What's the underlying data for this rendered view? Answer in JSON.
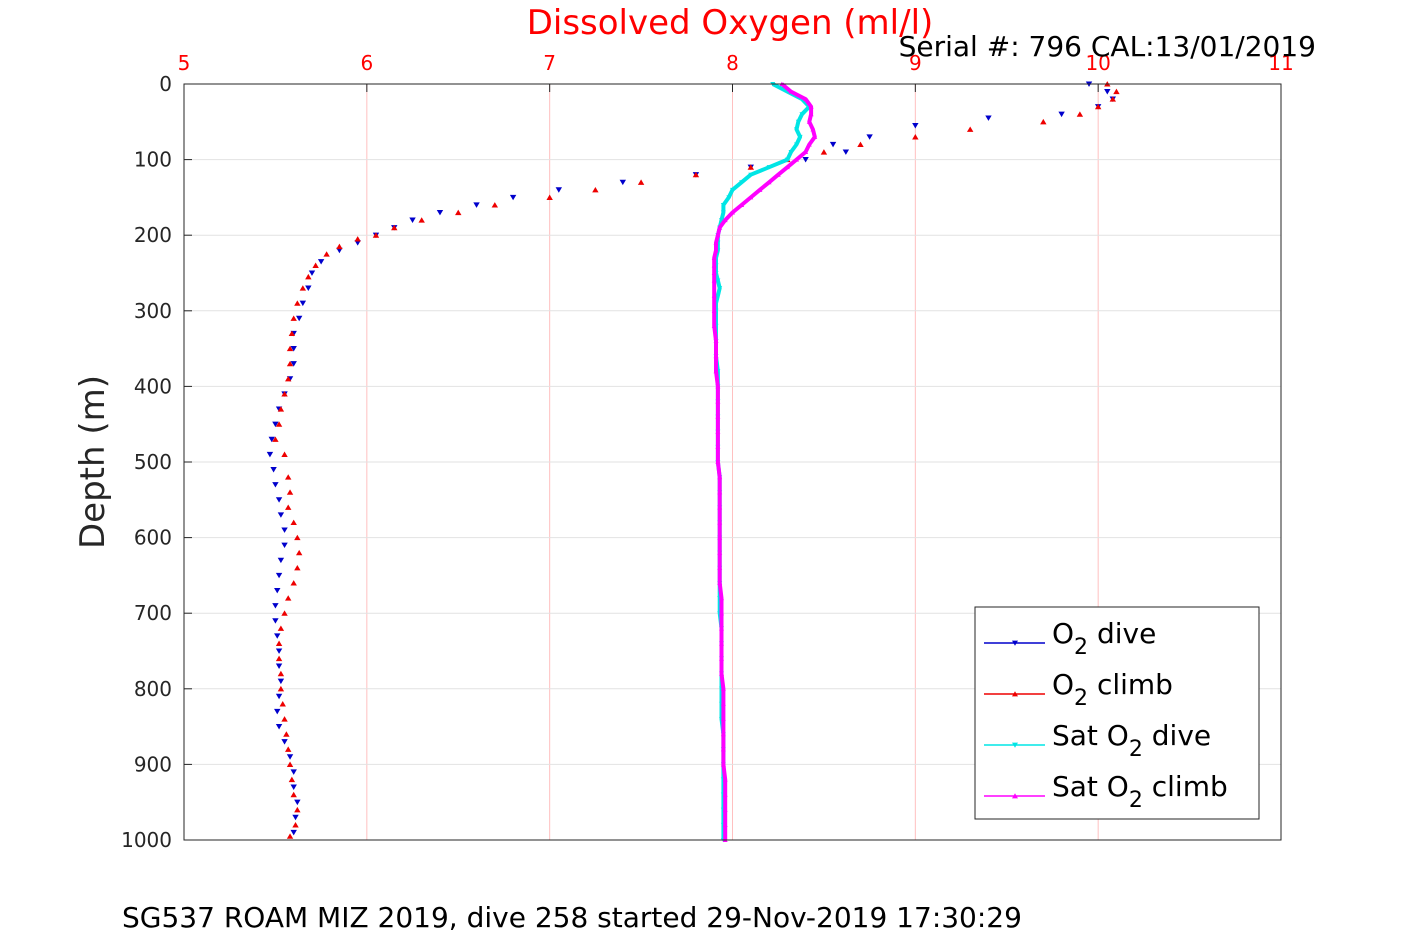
{
  "chart_data": {
    "type": "scatter",
    "title": "Dissolved Oxygen (ml/l)",
    "serial_text": "Serial #: 796  CAL:13/01/2019",
    "caption": "SG537 ROAM MIZ 2019, dive 258 started 29-Nov-2019 17:30:29",
    "xlabel": "Dissolved Oxygen (ml/l)",
    "ylabel": "Depth (m)",
    "xlim": [
      5,
      11
    ],
    "ylim": [
      0,
      1000
    ],
    "y_reversed": true,
    "x_axis_position": "top",
    "grid": true,
    "legend_position": "bottom-right",
    "x_ticks": [
      "5",
      "6",
      "7",
      "8",
      "9",
      "10",
      "11"
    ],
    "y_ticks": [
      "0",
      "100",
      "200",
      "300",
      "400",
      "500",
      "600",
      "700",
      "800",
      "900",
      "1000"
    ],
    "colors": {
      "title": "#ff0000",
      "x_tick_labels": "#ff0000",
      "grid": "#ffc0c0",
      "o2_dive": "#0000cc",
      "o2_climb": "#ee0000",
      "sat_o2_dive": "#00e5e5",
      "sat_o2_climb": "#ff00ff"
    },
    "legend": [
      {
        "pre": "O",
        "sub": "2",
        "post": " dive",
        "color": "#0000cc",
        "marker": "triangle-down"
      },
      {
        "pre": "O",
        "sub": "2",
        "post": " climb",
        "color": "#ee0000",
        "marker": "triangle-up"
      },
      {
        "pre": "Sat O",
        "sub": "2",
        "post": " dive",
        "color": "#00e5e5",
        "marker": "triangle-down"
      },
      {
        "pre": "Sat O",
        "sub": "2",
        "post": " climb",
        "color": "#ff00ff",
        "marker": "triangle-up"
      }
    ],
    "series": [
      {
        "key": "o2_dive",
        "color": "#0000cc",
        "marker": "triangle-down",
        "points": [
          [
            9.95,
            0
          ],
          [
            10.05,
            10
          ],
          [
            10.08,
            20
          ],
          [
            10.0,
            30
          ],
          [
            9.8,
            40
          ],
          [
            9.4,
            45
          ],
          [
            9.0,
            55
          ],
          [
            8.75,
            70
          ],
          [
            8.55,
            80
          ],
          [
            8.62,
            90
          ],
          [
            8.4,
            100
          ],
          [
            8.1,
            110
          ],
          [
            7.8,
            120
          ],
          [
            7.4,
            130
          ],
          [
            7.05,
            140
          ],
          [
            6.8,
            150
          ],
          [
            6.6,
            160
          ],
          [
            6.4,
            170
          ],
          [
            6.25,
            180
          ],
          [
            6.15,
            190
          ],
          [
            6.05,
            200
          ],
          [
            5.95,
            210
          ],
          [
            5.85,
            220
          ],
          [
            5.75,
            235
          ],
          [
            5.7,
            250
          ],
          [
            5.68,
            270
          ],
          [
            5.65,
            290
          ],
          [
            5.63,
            310
          ],
          [
            5.6,
            330
          ],
          [
            5.6,
            350
          ],
          [
            5.6,
            370
          ],
          [
            5.58,
            390
          ],
          [
            5.55,
            410
          ],
          [
            5.52,
            430
          ],
          [
            5.5,
            450
          ],
          [
            5.48,
            470
          ],
          [
            5.47,
            490
          ],
          [
            5.49,
            510
          ],
          [
            5.5,
            530
          ],
          [
            5.52,
            550
          ],
          [
            5.53,
            570
          ],
          [
            5.55,
            590
          ],
          [
            5.55,
            610
          ],
          [
            5.53,
            630
          ],
          [
            5.52,
            650
          ],
          [
            5.51,
            670
          ],
          [
            5.5,
            690
          ],
          [
            5.5,
            710
          ],
          [
            5.51,
            730
          ],
          [
            5.52,
            750
          ],
          [
            5.52,
            770
          ],
          [
            5.53,
            790
          ],
          [
            5.52,
            810
          ],
          [
            5.51,
            830
          ],
          [
            5.52,
            850
          ],
          [
            5.55,
            870
          ],
          [
            5.58,
            890
          ],
          [
            5.6,
            910
          ],
          [
            5.6,
            930
          ],
          [
            5.62,
            950
          ],
          [
            5.61,
            970
          ],
          [
            5.6,
            990
          ]
        ]
      },
      {
        "key": "o2_climb",
        "color": "#ee0000",
        "marker": "triangle-up",
        "points": [
          [
            10.05,
            0
          ],
          [
            10.1,
            10
          ],
          [
            10.08,
            20
          ],
          [
            10.0,
            30
          ],
          [
            9.9,
            40
          ],
          [
            9.7,
            50
          ],
          [
            9.3,
            60
          ],
          [
            9.0,
            70
          ],
          [
            8.7,
            80
          ],
          [
            8.5,
            90
          ],
          [
            8.3,
            100
          ],
          [
            8.1,
            110
          ],
          [
            7.8,
            120
          ],
          [
            7.5,
            130
          ],
          [
            7.25,
            140
          ],
          [
            7.0,
            150
          ],
          [
            6.7,
            160
          ],
          [
            6.5,
            170
          ],
          [
            6.3,
            180
          ],
          [
            6.15,
            190
          ],
          [
            6.05,
            200
          ],
          [
            5.95,
            205
          ],
          [
            5.85,
            215
          ],
          [
            5.78,
            225
          ],
          [
            5.72,
            240
          ],
          [
            5.68,
            255
          ],
          [
            5.65,
            270
          ],
          [
            5.62,
            290
          ],
          [
            5.6,
            310
          ],
          [
            5.59,
            330
          ],
          [
            5.58,
            350
          ],
          [
            5.58,
            370
          ],
          [
            5.57,
            390
          ],
          [
            5.55,
            410
          ],
          [
            5.53,
            430
          ],
          [
            5.52,
            450
          ],
          [
            5.5,
            470
          ],
          [
            5.55,
            490
          ],
          [
            5.57,
            520
          ],
          [
            5.58,
            540
          ],
          [
            5.57,
            560
          ],
          [
            5.6,
            580
          ],
          [
            5.62,
            600
          ],
          [
            5.63,
            620
          ],
          [
            5.62,
            640
          ],
          [
            5.6,
            660
          ],
          [
            5.57,
            680
          ],
          [
            5.55,
            700
          ],
          [
            5.53,
            720
          ],
          [
            5.52,
            740
          ],
          [
            5.52,
            760
          ],
          [
            5.53,
            780
          ],
          [
            5.53,
            800
          ],
          [
            5.54,
            820
          ],
          [
            5.55,
            840
          ],
          [
            5.56,
            860
          ],
          [
            5.57,
            880
          ],
          [
            5.58,
            900
          ],
          [
            5.59,
            920
          ],
          [
            5.6,
            940
          ],
          [
            5.62,
            960
          ],
          [
            5.61,
            980
          ],
          [
            5.58,
            995
          ]
        ]
      },
      {
        "key": "sat_o2_dive",
        "color": "#00e5e5",
        "marker": "triangle-down",
        "points": [
          [
            8.22,
            0
          ],
          [
            8.3,
            10
          ],
          [
            8.38,
            20
          ],
          [
            8.42,
            30
          ],
          [
            8.38,
            40
          ],
          [
            8.36,
            50
          ],
          [
            8.35,
            60
          ],
          [
            8.37,
            70
          ],
          [
            8.35,
            80
          ],
          [
            8.32,
            90
          ],
          [
            8.3,
            100
          ],
          [
            8.2,
            110
          ],
          [
            8.1,
            120
          ],
          [
            8.05,
            130
          ],
          [
            8.0,
            140
          ],
          [
            7.98,
            150
          ],
          [
            7.95,
            160
          ],
          [
            7.95,
            170
          ],
          [
            7.94,
            180
          ],
          [
            7.93,
            190
          ],
          [
            7.92,
            200
          ],
          [
            7.92,
            210
          ],
          [
            7.92,
            220
          ],
          [
            7.91,
            230
          ],
          [
            7.91,
            240
          ],
          [
            7.91,
            250
          ],
          [
            7.92,
            260
          ],
          [
            7.93,
            270
          ],
          [
            7.92,
            280
          ],
          [
            7.91,
            290
          ],
          [
            7.91,
            300
          ],
          [
            7.91,
            320
          ],
          [
            7.91,
            340
          ],
          [
            7.91,
            360
          ],
          [
            7.92,
            380
          ],
          [
            7.92,
            400
          ],
          [
            7.92,
            420
          ],
          [
            7.92,
            440
          ],
          [
            7.92,
            460
          ],
          [
            7.92,
            480
          ],
          [
            7.92,
            500
          ],
          [
            7.93,
            520
          ],
          [
            7.93,
            540
          ],
          [
            7.93,
            560
          ],
          [
            7.93,
            580
          ],
          [
            7.93,
            600
          ],
          [
            7.93,
            620
          ],
          [
            7.93,
            640
          ],
          [
            7.93,
            660
          ],
          [
            7.93,
            680
          ],
          [
            7.93,
            700
          ],
          [
            7.94,
            720
          ],
          [
            7.94,
            740
          ],
          [
            7.94,
            760
          ],
          [
            7.94,
            780
          ],
          [
            7.94,
            800
          ],
          [
            7.94,
            820
          ],
          [
            7.94,
            840
          ],
          [
            7.95,
            860
          ],
          [
            7.95,
            880
          ],
          [
            7.95,
            900
          ],
          [
            7.95,
            920
          ],
          [
            7.95,
            940
          ],
          [
            7.95,
            960
          ],
          [
            7.95,
            980
          ],
          [
            7.95,
            1000
          ]
        ]
      },
      {
        "key": "sat_o2_climb",
        "color": "#ff00ff",
        "marker": "triangle-up",
        "points": [
          [
            8.27,
            0
          ],
          [
            8.32,
            10
          ],
          [
            8.4,
            20
          ],
          [
            8.43,
            30
          ],
          [
            8.43,
            40
          ],
          [
            8.42,
            50
          ],
          [
            8.44,
            60
          ],
          [
            8.45,
            70
          ],
          [
            8.42,
            80
          ],
          [
            8.4,
            90
          ],
          [
            8.35,
            100
          ],
          [
            8.3,
            110
          ],
          [
            8.25,
            120
          ],
          [
            8.2,
            130
          ],
          [
            8.15,
            140
          ],
          [
            8.1,
            150
          ],
          [
            8.05,
            160
          ],
          [
            8.0,
            170
          ],
          [
            7.96,
            180
          ],
          [
            7.93,
            190
          ],
          [
            7.92,
            200
          ],
          [
            7.91,
            210
          ],
          [
            7.91,
            220
          ],
          [
            7.9,
            230
          ],
          [
            7.9,
            240
          ],
          [
            7.9,
            250
          ],
          [
            7.9,
            260
          ],
          [
            7.9,
            280
          ],
          [
            7.9,
            300
          ],
          [
            7.9,
            320
          ],
          [
            7.91,
            340
          ],
          [
            7.91,
            360
          ],
          [
            7.91,
            380
          ],
          [
            7.92,
            400
          ],
          [
            7.92,
            420
          ],
          [
            7.92,
            440
          ],
          [
            7.92,
            460
          ],
          [
            7.92,
            480
          ],
          [
            7.92,
            500
          ],
          [
            7.93,
            520
          ],
          [
            7.93,
            540
          ],
          [
            7.93,
            560
          ],
          [
            7.93,
            580
          ],
          [
            7.93,
            600
          ],
          [
            7.93,
            620
          ],
          [
            7.93,
            640
          ],
          [
            7.93,
            660
          ],
          [
            7.94,
            680
          ],
          [
            7.94,
            700
          ],
          [
            7.94,
            720
          ],
          [
            7.94,
            740
          ],
          [
            7.94,
            760
          ],
          [
            7.94,
            780
          ],
          [
            7.95,
            800
          ],
          [
            7.95,
            820
          ],
          [
            7.95,
            840
          ],
          [
            7.95,
            860
          ],
          [
            7.95,
            880
          ],
          [
            7.95,
            900
          ],
          [
            7.96,
            920
          ],
          [
            7.96,
            940
          ],
          [
            7.96,
            960
          ],
          [
            7.96,
            980
          ],
          [
            7.96,
            1000
          ]
        ]
      }
    ]
  }
}
